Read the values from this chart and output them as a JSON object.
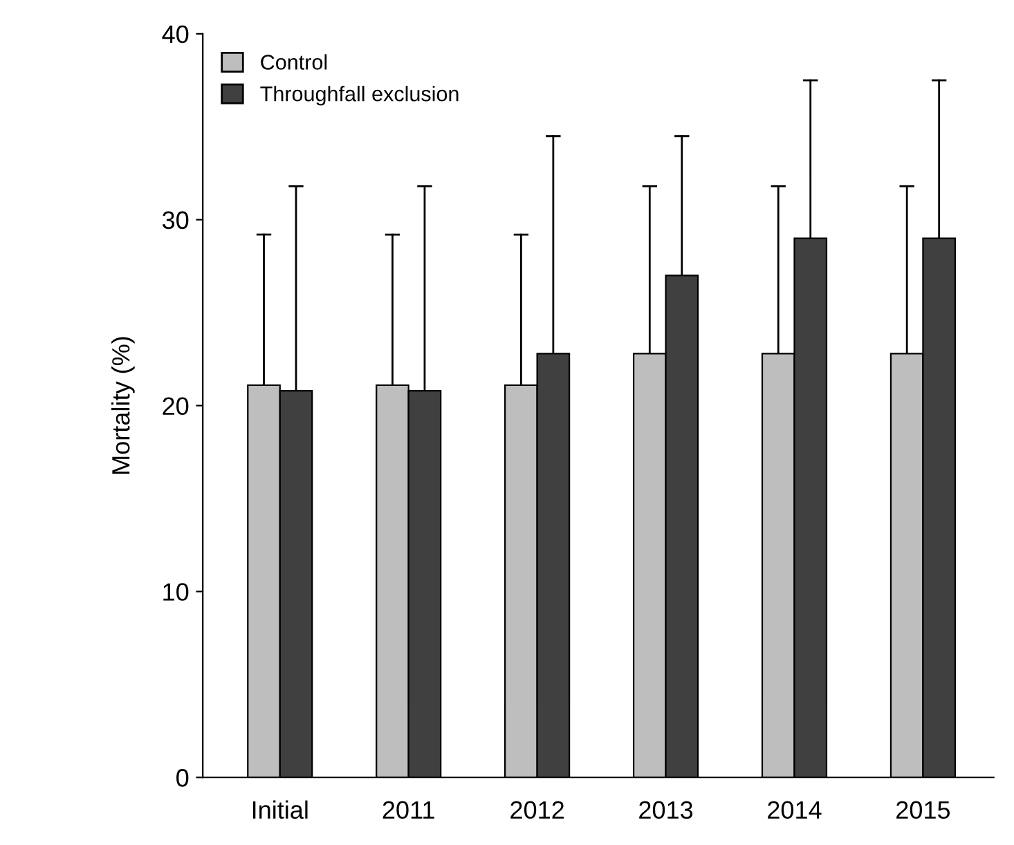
{
  "chart_data": {
    "type": "bar",
    "ylabel": "Mortality (%)",
    "categories": [
      "Initial",
      "2011",
      "2012",
      "2013",
      "2014",
      "2015"
    ],
    "series": [
      {
        "name": "Control",
        "color": "#bebebe",
        "values": [
          21.1,
          21.1,
          21.1,
          22.8,
          22.8,
          22.8
        ],
        "errors": [
          [
            21.1,
            29.2
          ],
          [
            21.1,
            29.2
          ],
          [
            21.1,
            29.2
          ],
          [
            22.8,
            31.8
          ],
          [
            22.8,
            31.8
          ],
          [
            22.8,
            31.8
          ]
        ]
      },
      {
        "name": "Throughfall exclusion",
        "color": "#404040",
        "values": [
          20.8,
          20.8,
          22.8,
          27.0,
          29.0,
          29.0
        ],
        "errors": [
          [
            20.8,
            31.8
          ],
          [
            20.8,
            31.8
          ],
          [
            22.8,
            34.5
          ],
          [
            27.0,
            34.5
          ],
          [
            29.0,
            37.5
          ],
          [
            29.0,
            37.5
          ]
        ]
      }
    ],
    "ylim": [
      0,
      40
    ],
    "yticks": [
      0,
      10,
      20,
      30,
      40
    ],
    "grid": false,
    "legend": "top left"
  }
}
